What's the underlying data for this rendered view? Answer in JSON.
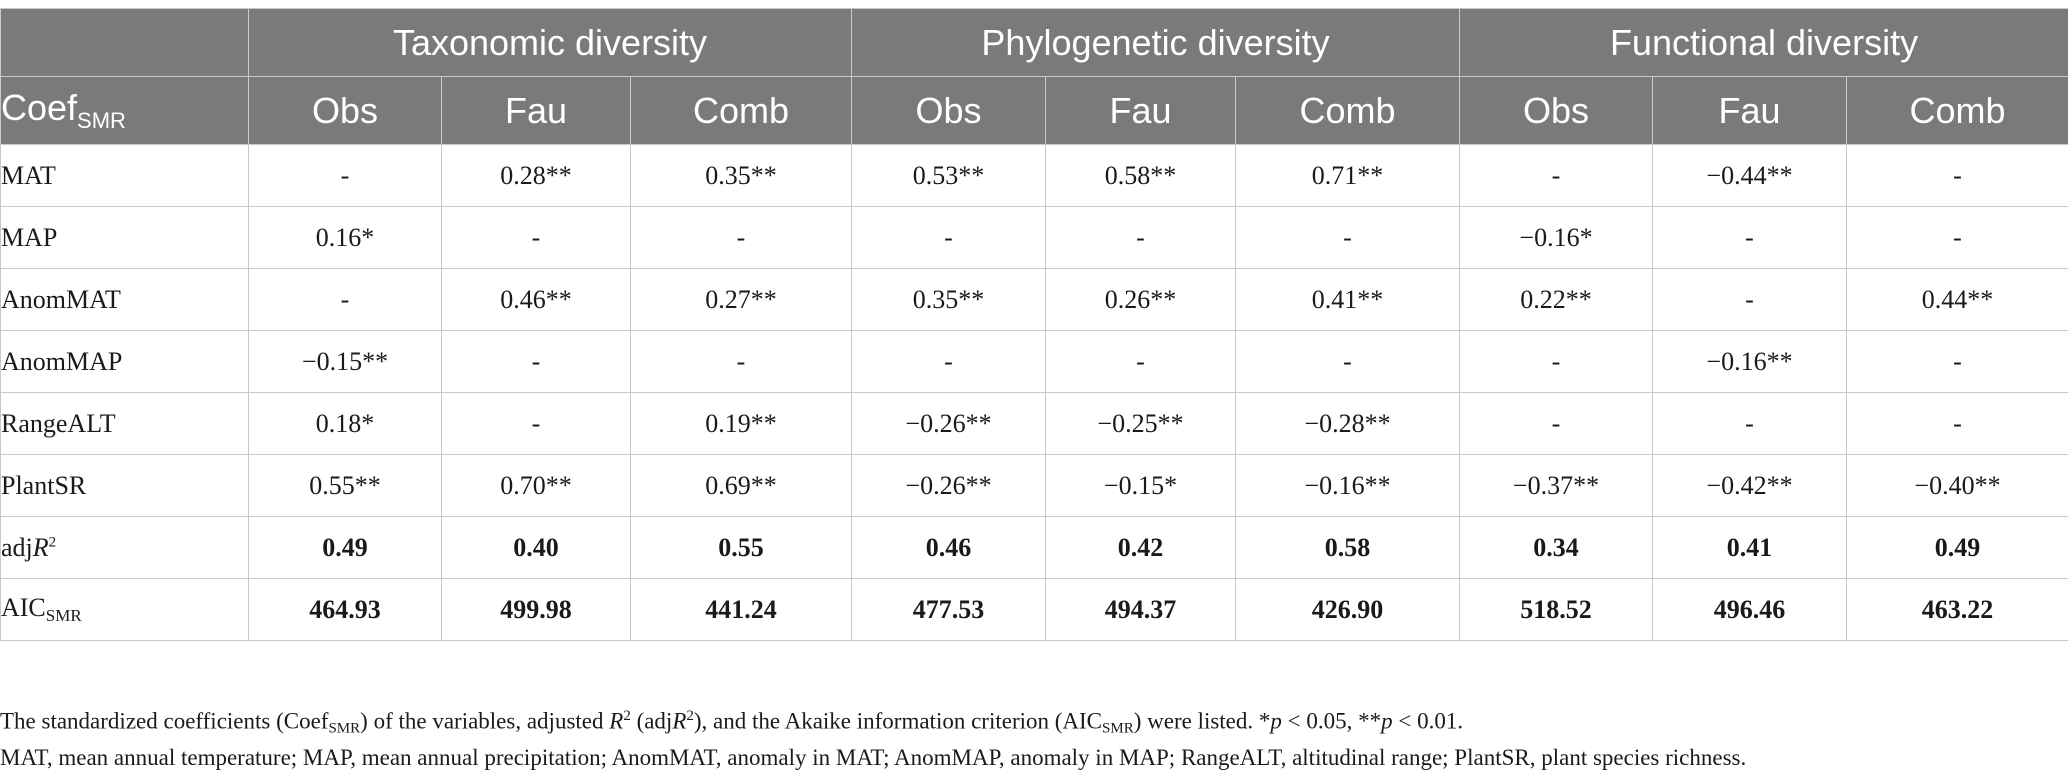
{
  "table": {
    "groups": [
      "Taxonomic diversity",
      "Phylogenetic diversity",
      "Functional diversity"
    ],
    "corner_main": "Coef",
    "corner_sub": "SMR",
    "subheaders": [
      "Obs",
      "Fau",
      "Comb",
      "Obs",
      "Fau",
      "Comb",
      "Obs",
      "Fau",
      "Comb"
    ],
    "rows": [
      {
        "label": "MAT",
        "values": [
          "-",
          "0.28**",
          "0.35**",
          "0.53**",
          "0.58**",
          "0.71**",
          "-",
          "−0.44**",
          "-"
        ]
      },
      {
        "label": "MAP",
        "values": [
          "0.16*",
          "-",
          "-",
          "-",
          "-",
          "-",
          "−0.16*",
          "-",
          "-"
        ]
      },
      {
        "label": "AnomMAT",
        "values": [
          "-",
          "0.46**",
          "0.27**",
          "0.35**",
          "0.26**",
          "0.41**",
          "0.22**",
          "-",
          "0.44**"
        ]
      },
      {
        "label": "AnomMAP",
        "values": [
          "−0.15**",
          "-",
          "-",
          "-",
          "-",
          "-",
          "-",
          "−0.16**",
          "-"
        ]
      },
      {
        "label": "RangeALT",
        "values": [
          "0.18*",
          "-",
          "0.19**",
          "−0.26**",
          "−0.25**",
          "−0.28**",
          "-",
          "-",
          "-"
        ]
      },
      {
        "label": "PlantSR",
        "values": [
          "0.55**",
          "0.70**",
          "0.69**",
          "−0.26**",
          "−0.15*",
          "−0.16**",
          "−0.37**",
          "−0.42**",
          "−0.40**"
        ]
      }
    ],
    "adj_label_main": "adj",
    "adj_label_var": "R",
    "adj_label_sup": "2",
    "adj_values": [
      "0.49",
      "0.40",
      "0.55",
      "0.46",
      "0.42",
      "0.58",
      "0.34",
      "0.41",
      "0.49"
    ],
    "aic_label_main": "AIC",
    "aic_label_sub": "SMR",
    "aic_values": [
      "464.93",
      "499.98",
      "441.24",
      "477.53",
      "494.37",
      "426.90",
      "518.52",
      "496.46",
      "463.22"
    ]
  },
  "footnotes": {
    "line1": [
      "The standardized coefficients (Coef",
      "SMR",
      ") of the variables, adjusted ",
      "R",
      "2",
      " (adj",
      "R",
      "2",
      "), and the Akaike information criterion (AIC",
      "SMR",
      ") were listed. *",
      "p",
      " < 0.05, **",
      "p",
      " < 0.01."
    ],
    "line2": "MAT, mean annual temperature; MAP, mean annual precipitation; AnomMAT, anomaly in MAT; AnomMAP, anomaly in MAP; RangeALT, altitudinal range; PlantSR, plant species richness."
  }
}
